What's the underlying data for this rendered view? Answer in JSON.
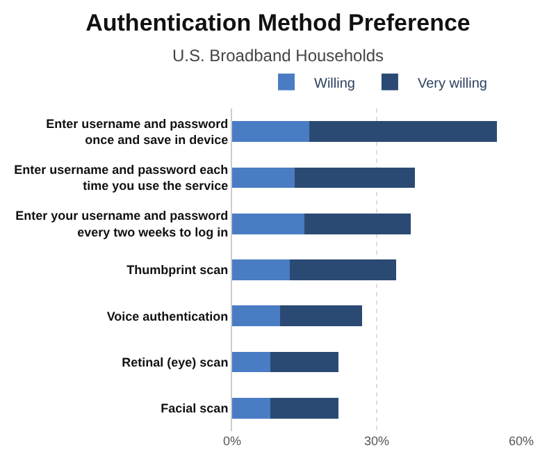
{
  "chart_data": {
    "type": "bar",
    "orientation": "horizontal",
    "stacked": true,
    "title": "Authentication Method Preference",
    "subtitle": "U.S. Broadband Households",
    "categories": [
      "Enter username and password\nonce and save in device",
      "Enter username and password each\ntime you use the service",
      "Enter your username and password\nevery two weeks to log in",
      "Thumbprint scan",
      "Voice authentication",
      "Retinal (eye) scan",
      "Facial scan"
    ],
    "series": [
      {
        "name": "Willing",
        "color": "#4a7cc4",
        "values": [
          16,
          13,
          15,
          12,
          10,
          8,
          8
        ]
      },
      {
        "name": "Very willing",
        "color": "#2b4a73",
        "values": [
          39,
          25,
          22,
          22,
          17,
          14,
          14
        ]
      }
    ],
    "xlim": [
      0,
      60
    ],
    "xticks": [
      {
        "value": 0,
        "label": "0%"
      },
      {
        "value": 30,
        "label": "30%"
      },
      {
        "value": 60,
        "label": "60%"
      }
    ],
    "grid": "x",
    "legend": "top"
  }
}
